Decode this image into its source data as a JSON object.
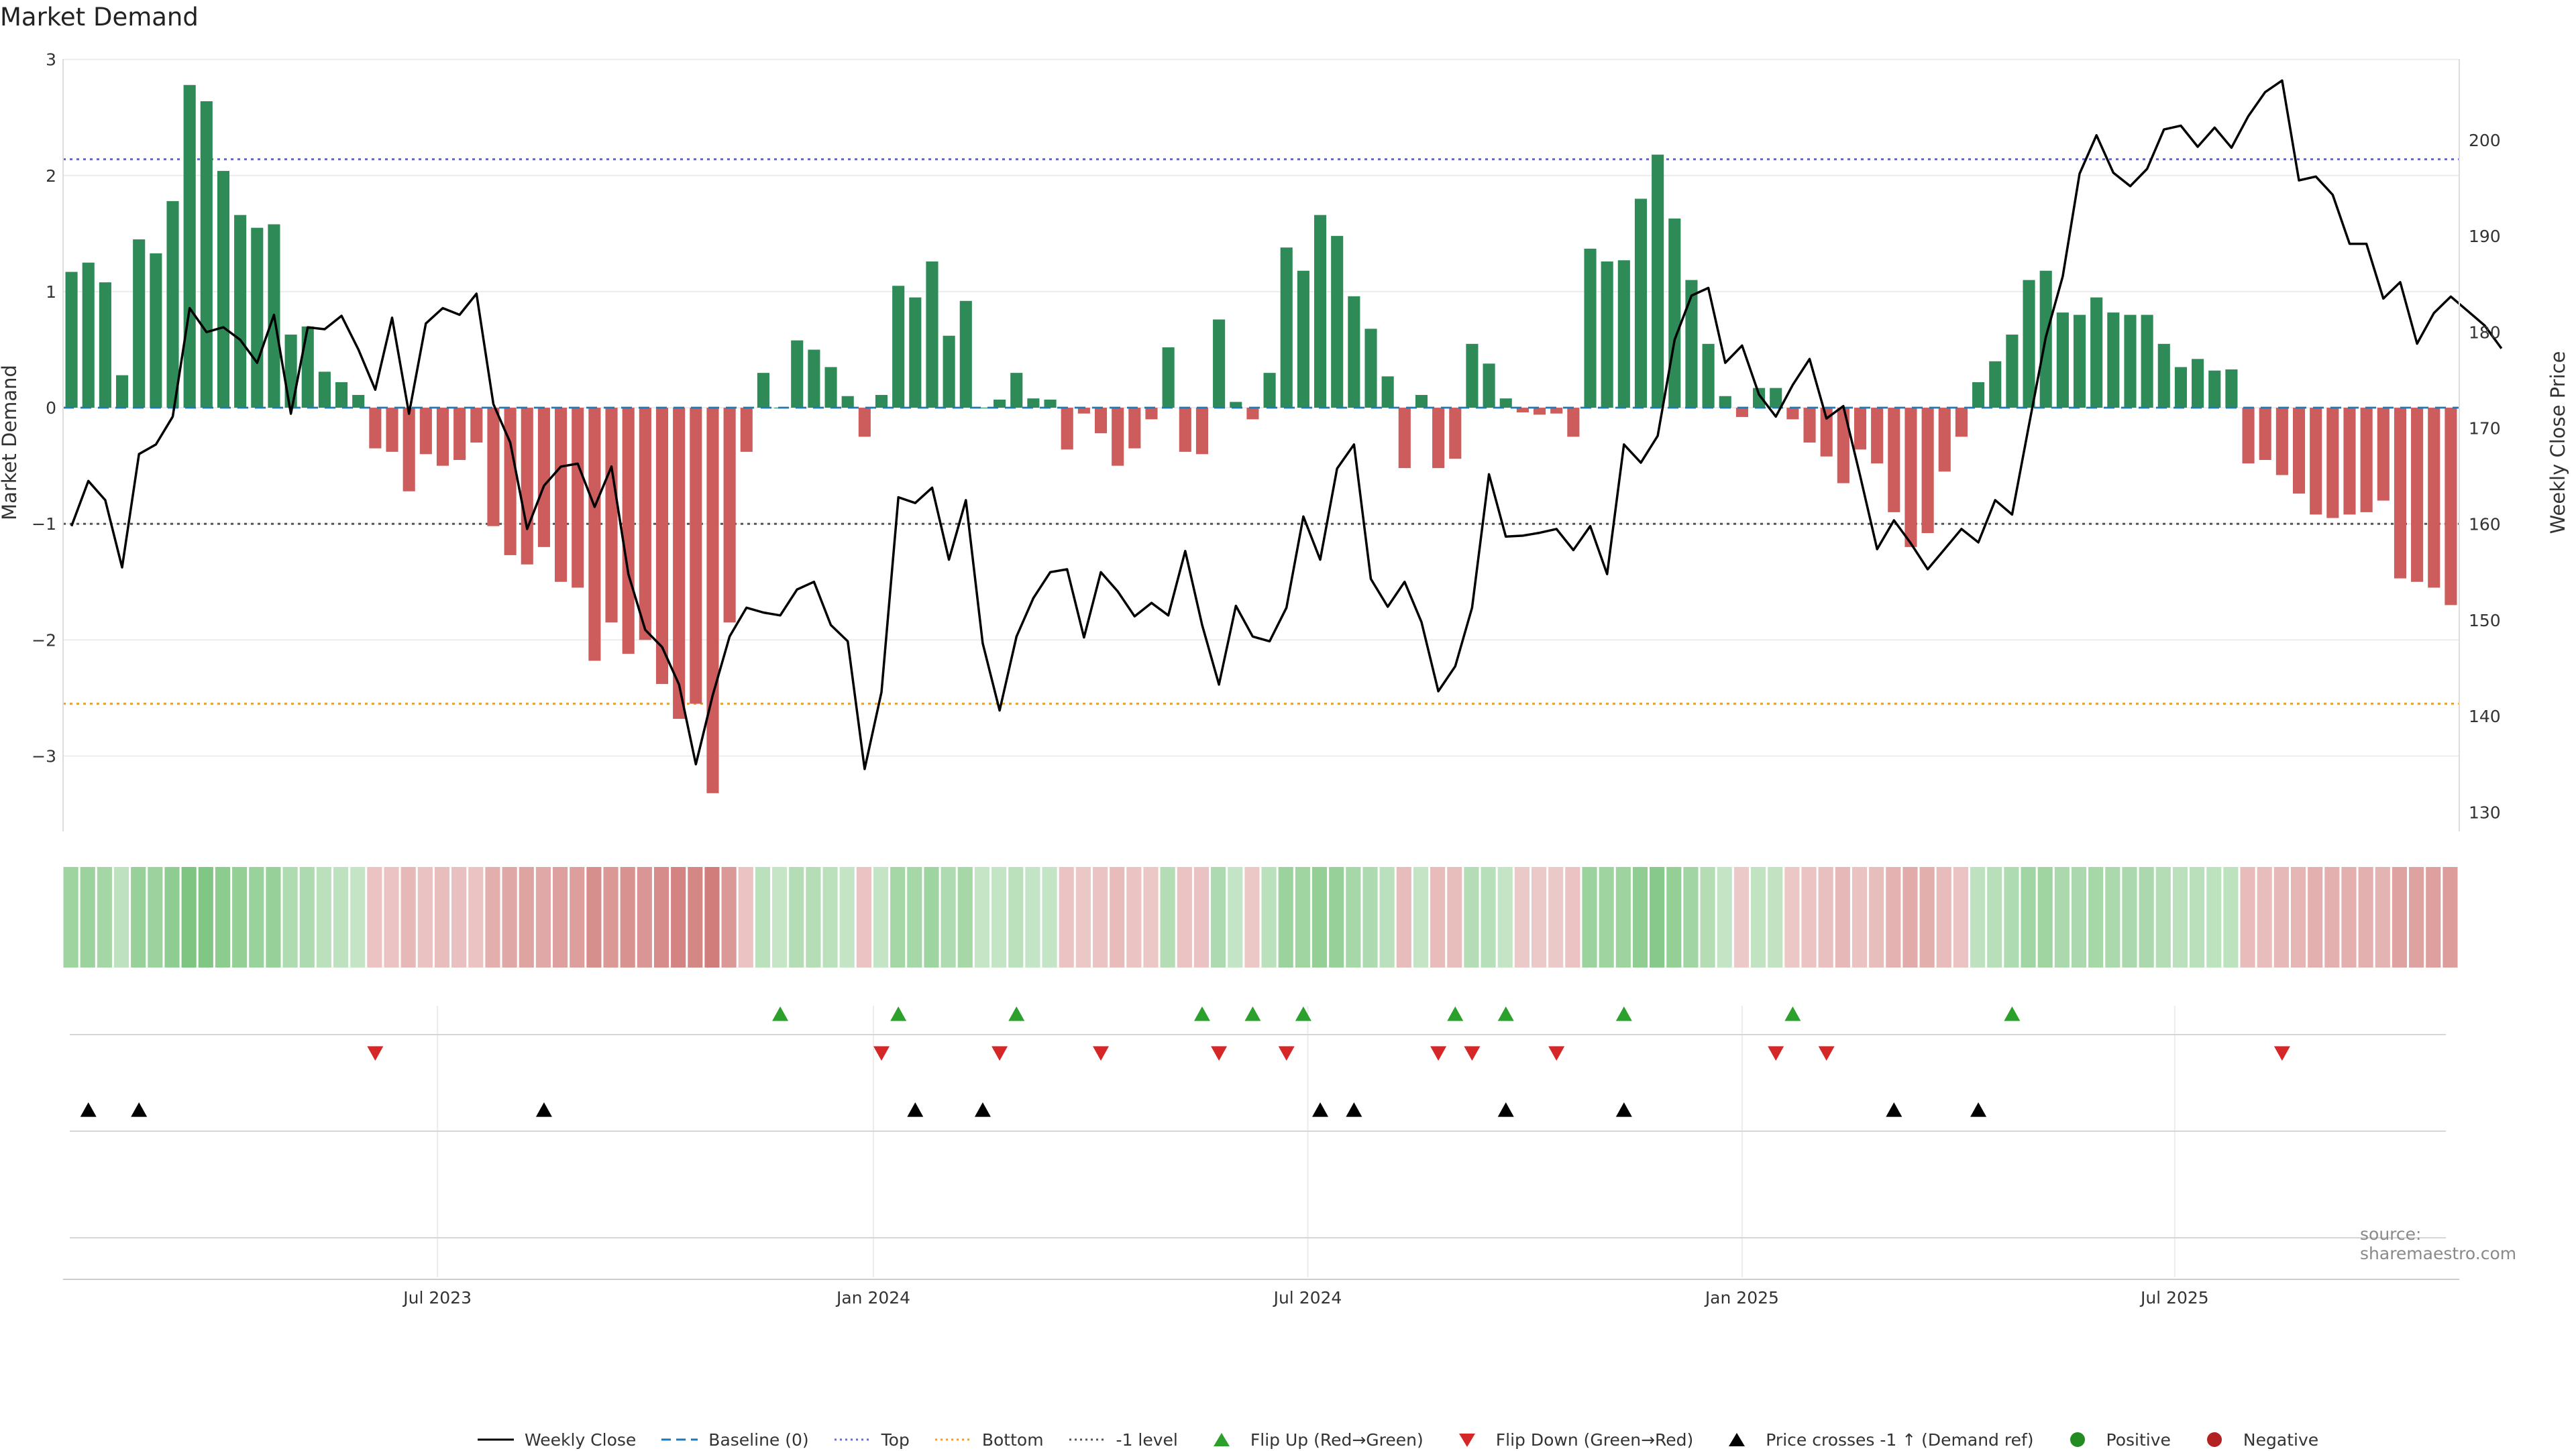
{
  "title": "Market Demand",
  "source": "source: sharemaestro.com",
  "legend": [
    {
      "key": "line_black",
      "label": "Weekly Close"
    },
    {
      "key": "dash_blue",
      "label": "Baseline (0)"
    },
    {
      "key": "dot_purple",
      "label": "Top"
    },
    {
      "key": "dot_orange",
      "label": "Bottom"
    },
    {
      "key": "dot_gray",
      "label": "-1 level"
    },
    {
      "key": "tri_up_green",
      "label": "Flip Up (Red→Green)"
    },
    {
      "key": "tri_down_red",
      "label": "Flip Down (Green→Red)"
    },
    {
      "key": "tri_up_black",
      "label": "Price crosses -1 ↑ (Demand ref)"
    },
    {
      "key": "dot_green",
      "label": "Positive"
    },
    {
      "key": "dot_red",
      "label": "Negative"
    }
  ],
  "colors": {
    "positive": "#2e8b57",
    "negative": "#cd5c5c",
    "price": "#000000",
    "baseline": "#1f77b4",
    "top": "#6a6acd",
    "bottom": "#e8a33a",
    "minus_one": "#555555",
    "flip_up": "#2ca02c",
    "flip_down": "#d62728",
    "cross": "#000000",
    "grid": "#ececec"
  },
  "chart_data": {
    "type": "bar",
    "title": "Market Demand",
    "ylabel": "Market Demand",
    "y2label": "Weekly Close Price",
    "ylim": [
      -3.65,
      3.05
    ],
    "y2lim": [
      128,
      209
    ],
    "yticks": [
      3,
      2,
      1,
      0,
      -1,
      -2,
      -3
    ],
    "ytick_labels": [
      "3",
      "2",
      "1",
      "0",
      "−1",
      "−2",
      "−3"
    ],
    "y2ticks": [
      200,
      190,
      180,
      170,
      160,
      150,
      140,
      130
    ],
    "xlim": [
      0,
      144
    ],
    "xticks": [
      {
        "pos": 22.5,
        "label": "Jul 2023"
      },
      {
        "pos": 48.7,
        "label": "Jan 2024"
      },
      {
        "pos": 74.8,
        "label": "Jul 2024"
      },
      {
        "pos": 100.9,
        "label": "Jan 2025"
      },
      {
        "pos": 126.9,
        "label": "Jul 2025"
      }
    ],
    "reference_lines": {
      "baseline": 0,
      "top": 2.14,
      "bottom": -2.55,
      "minus_one": -1.0
    },
    "demand": [
      1.17,
      1.25,
      1.08,
      0.28,
      1.45,
      1.33,
      1.78,
      2.78,
      2.64,
      2.04,
      1.66,
      1.55,
      1.58,
      0.63,
      0.7,
      0.31,
      0.22,
      0.11,
      -0.35,
      -0.38,
      -0.72,
      -0.4,
      -0.5,
      -0.45,
      -0.3,
      -1.02,
      -1.27,
      -1.35,
      -1.2,
      -1.5,
      -1.55,
      -2.18,
      -1.85,
      -2.12,
      -2.0,
      -2.38,
      -2.68,
      -2.55,
      -3.32,
      -1.85,
      -0.38,
      0.3,
      0.0,
      0.58,
      0.5,
      0.35,
      0.1,
      -0.25,
      0.11,
      1.05,
      0.95,
      1.26,
      0.62,
      0.92,
      0.0,
      0.07,
      0.3,
      0.08,
      0.07,
      -0.36,
      -0.05,
      -0.22,
      -0.5,
      -0.35,
      -0.1,
      0.52,
      -0.38,
      -0.4,
      0.76,
      0.05,
      -0.1,
      0.3,
      1.38,
      1.18,
      1.66,
      1.48,
      0.96,
      0.68,
      0.27,
      -0.52,
      0.11,
      -0.52,
      -0.44,
      0.55,
      0.38,
      0.08,
      -0.04,
      -0.06,
      -0.05,
      -0.25,
      1.37,
      1.26,
      1.27,
      1.8,
      2.18,
      1.63,
      1.1,
      0.55,
      0.1,
      -0.08,
      0.17,
      0.17,
      -0.1,
      -0.3,
      -0.42,
      -0.65,
      -0.36,
      -0.48,
      -0.9,
      -1.2,
      -1.08,
      -0.55,
      -0.25,
      0.22,
      0.4,
      0.63,
      1.1,
      1.18,
      0.82,
      0.8,
      0.95,
      0.82,
      0.8,
      0.8,
      0.55,
      0.35,
      0.42,
      0.32,
      0.33,
      -0.48,
      -0.45,
      -0.58,
      -0.74,
      -0.92,
      -0.95,
      -0.92,
      -0.9,
      -0.8,
      -1.47,
      -1.5,
      -1.55,
      -1.7
    ],
    "price": [
      159.8,
      164.5,
      162.5,
      155.5,
      167.3,
      168.3,
      171.2,
      182.5,
      180.0,
      180.5,
      179.2,
      176.8,
      181.8,
      171.5,
      180.5,
      180.3,
      181.7,
      178.2,
      174.0,
      181.5,
      171.5,
      180.9,
      182.5,
      181.8,
      184.0,
      172.5,
      168.5,
      159.5,
      164.0,
      166.0,
      166.3,
      161.8,
      166.0,
      154.8,
      149.0,
      147.2,
      143.3,
      135.0,
      142.2,
      148.3,
      151.3,
      150.8,
      150.5,
      153.2,
      154.0,
      149.5,
      147.8,
      134.5,
      142.5,
      162.8,
      162.2,
      163.8,
      156.3,
      162.5,
      147.6,
      140.6,
      148.3,
      152.3,
      155.0,
      155.3,
      148.2,
      155.0,
      153.0,
      150.4,
      151.8,
      150.5,
      157.2,
      149.5,
      143.3,
      151.5,
      148.3,
      147.8,
      151.3,
      160.8,
      156.3,
      165.8,
      168.3,
      154.3,
      151.4,
      154.0,
      149.8,
      142.6,
      145.2,
      151.3,
      165.2,
      158.7,
      158.8,
      159.1,
      159.5,
      157.3,
      159.8,
      154.8,
      168.3,
      166.4,
      169.2,
      179.2,
      183.8,
      184.6,
      176.8,
      178.6,
      173.5,
      171.2,
      174.5,
      177.2,
      171.0,
      172.3,
      165.0,
      157.4,
      160.4,
      158.0,
      155.3,
      157.4,
      159.5,
      158.1,
      162.5,
      161.0,
      170.3,
      179.5,
      185.8,
      196.5,
      200.5,
      196.6,
      195.2,
      197.0,
      201.1,
      201.5,
      199.3,
      201.3,
      199.2,
      202.5,
      205.0,
      206.2,
      195.8,
      196.2,
      194.3,
      189.2,
      189.2,
      183.5,
      185.2,
      178.8,
      182.0,
      183.7,
      182.2,
      180.7,
      178.3
    ]
  },
  "heatmap": {
    "intensity": [
      0.54,
      0.56,
      0.51,
      0.36,
      0.58,
      0.56,
      0.63,
      0.72,
      0.7,
      0.64,
      0.6,
      0.57,
      0.58,
      0.45,
      0.46,
      0.38,
      0.36,
      0.33,
      0.34,
      0.34,
      0.4,
      0.35,
      0.37,
      0.36,
      0.34,
      0.46,
      0.5,
      0.52,
      0.49,
      0.54,
      0.55,
      0.64,
      0.59,
      0.62,
      0.6,
      0.66,
      0.7,
      0.68,
      0.74,
      0.59,
      0.34,
      0.38,
      0.32,
      0.42,
      0.41,
      0.38,
      0.33,
      0.34,
      0.33,
      0.51,
      0.5,
      0.54,
      0.45,
      0.5,
      0.32,
      0.33,
      0.38,
      0.33,
      0.33,
      0.34,
      0.32,
      0.34,
      0.38,
      0.34,
      0.32,
      0.42,
      0.34,
      0.35,
      0.46,
      0.33,
      0.32,
      0.38,
      0.56,
      0.53,
      0.6,
      0.58,
      0.5,
      0.46,
      0.38,
      0.38,
      0.33,
      0.38,
      0.37,
      0.42,
      0.4,
      0.33,
      0.31,
      0.31,
      0.31,
      0.34,
      0.56,
      0.54,
      0.55,
      0.62,
      0.67,
      0.6,
      0.52,
      0.42,
      0.33,
      0.31,
      0.35,
      0.35,
      0.32,
      0.34,
      0.36,
      0.4,
      0.35,
      0.37,
      0.44,
      0.48,
      0.46,
      0.38,
      0.34,
      0.36,
      0.4,
      0.45,
      0.52,
      0.53,
      0.47,
      0.47,
      0.5,
      0.47,
      0.47,
      0.47,
      0.42,
      0.38,
      0.39,
      0.37,
      0.37,
      0.38,
      0.37,
      0.4,
      0.42,
      0.45,
      0.45,
      0.45,
      0.45,
      0.43,
      0.53,
      0.53,
      0.54,
      0.56
    ]
  },
  "events": {
    "flip_up": [
      42,
      49,
      56,
      67,
      70,
      73,
      82,
      85,
      92,
      102,
      115
    ],
    "flip_down": [
      18,
      48,
      55,
      61,
      68,
      72,
      81,
      83,
      88,
      101,
      104,
      131
    ],
    "price_cross": [
      1,
      4,
      28,
      50,
      54,
      74,
      76,
      85,
      92,
      108,
      113
    ]
  }
}
